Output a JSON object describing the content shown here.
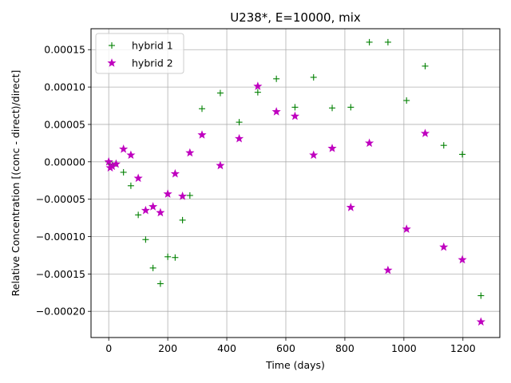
{
  "chart_data": {
    "type": "scatter",
    "title": "U238*, E=10000, mix",
    "xlabel": "Time (days)",
    "ylabel": "Relative Concentration [(conc - direct)/direct]",
    "xlim": [
      -60,
      1325
    ],
    "ylim": [
      -0.000235,
      0.000178
    ],
    "xticks": [
      0,
      200,
      400,
      600,
      800,
      1000,
      1200
    ],
    "xtick_labels": [
      "0",
      "200",
      "400",
      "600",
      "800",
      "1000",
      "1200"
    ],
    "yticks": [
      -0.0002,
      -0.00015,
      -0.0001,
      -5e-05,
      0.0,
      5e-05,
      0.0001,
      0.00015
    ],
    "ytick_labels": [
      "−0.00020",
      "−0.00015",
      "−0.00010",
      "−0.00005",
      "0.00000",
      "0.00005",
      "0.00010",
      "0.00015"
    ],
    "grid": true,
    "legend_position": "top-left",
    "series": [
      {
        "name": "hybrid 1",
        "marker": "+",
        "color": "#008000",
        "x": [
          0,
          5,
          12,
          25,
          50,
          75,
          100,
          125,
          150,
          175,
          200,
          225,
          250,
          275,
          316,
          378,
          442,
          505,
          568,
          631,
          694,
          757,
          820,
          883,
          946,
          1009,
          1072,
          1135,
          1198,
          1261
        ],
        "y": [
          0.0,
          -3e-06,
          -4e-06,
          -2e-06,
          -1.4e-05,
          -3.2e-05,
          -7.1e-05,
          -0.000104,
          -0.000142,
          -0.000163,
          -0.000127,
          -0.000128,
          -7.8e-05,
          -4.5e-05,
          7.1e-05,
          9.2e-05,
          5.3e-05,
          9.3e-05,
          0.000111,
          7.3e-05,
          0.000113,
          7.2e-05,
          7.3e-05,
          0.00016,
          0.00016,
          8.2e-05,
          0.000128,
          2.2e-05,
          1e-05,
          -0.000179
        ]
      },
      {
        "name": "hybrid 2",
        "marker": "*",
        "color": "#bf00bf",
        "x": [
          0,
          5,
          12,
          25,
          50,
          75,
          100,
          125,
          150,
          175,
          200,
          225,
          250,
          275,
          316,
          378,
          442,
          505,
          568,
          631,
          694,
          757,
          820,
          883,
          946,
          1009,
          1072,
          1135,
          1198,
          1261
        ],
        "y": [
          0.0,
          -8e-06,
          -6e-06,
          -3e-06,
          1.7e-05,
          9e-06,
          -2.2e-05,
          -6.5e-05,
          -6e-05,
          -6.8e-05,
          -4.3e-05,
          -1.6e-05,
          -4.6e-05,
          1.2e-05,
          3.6e-05,
          -5e-06,
          3.1e-05,
          0.000101,
          6.7e-05,
          6.1e-05,
          9e-06,
          1.8e-05,
          -6.1e-05,
          2.5e-05,
          -0.000145,
          -9e-05,
          3.8e-05,
          -0.000114,
          -0.000131,
          -0.000214
        ]
      }
    ]
  }
}
